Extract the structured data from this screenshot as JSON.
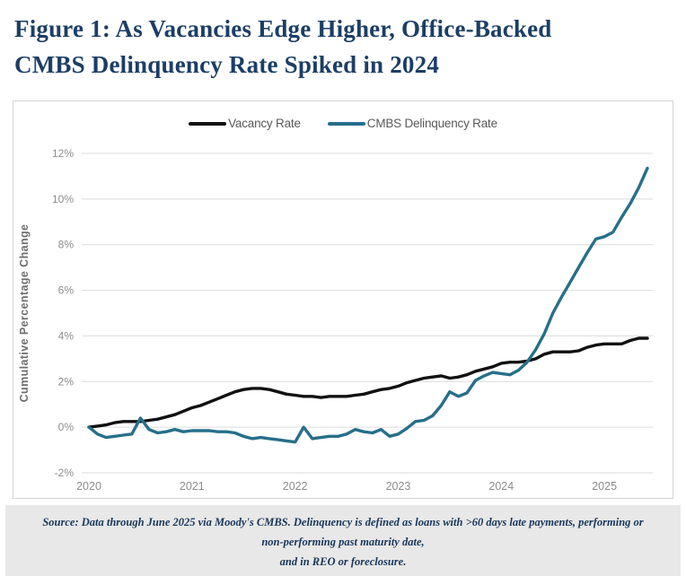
{
  "title": "Figure 1: As Vacancies Edge Higher, Office-Backed CMBS Delinquency Rate Spiked in 2024",
  "title_lines": [
    "Figure 1: As Vacancies Edge Higher, Office-Backed",
    "CMBS Delinquency Rate Spiked in 2024"
  ],
  "source_note": "Source: Data through June 2025 via Moody's CMBS. Delinquency is defined as loans with >60 days late payments, performing or non-performing past maturity date, and in REO or foreclosure.",
  "source_lines": [
    "Source: Data through June 2025 via Moody's CMBS. Delinquency is defined as loans with >60 days late payments, performing or non-performing past maturity date,",
    "and in REO or foreclosure."
  ],
  "colors": {
    "title_navy": "#1c3e66",
    "source_navy": "#17365c",
    "vacancy_line": "#111111",
    "cmbs_line": "#266f8a",
    "axis_text": "#8c8c8c",
    "axis_title": "#6e6e6e",
    "gridline": "#dcdcdc",
    "legend_text": "#595959",
    "panel_border": "#d4d4d4",
    "source_bg": "#e8e8e8"
  },
  "chart_data": {
    "type": "line",
    "title": "",
    "xlabel": "",
    "ylabel": "Cumulative Percentage Change",
    "ylim": [
      -2,
      12
    ],
    "grid": "horizontal",
    "legend_position": "top-center",
    "x_start": "Jan 2020",
    "x_end": "Jun 2025",
    "x_frequency": "monthly",
    "x_tick_labels": [
      "2020",
      "2021",
      "2022",
      "2023",
      "2024",
      "2025"
    ],
    "x_tick_month_index": [
      0,
      12,
      24,
      36,
      48,
      60
    ],
    "y_tick_values": [
      12,
      10,
      8,
      6,
      4,
      2,
      0,
      -2
    ],
    "y_tick_labels": [
      "12%",
      "10%",
      "8%",
      "6%",
      "4%",
      "2%",
      "0%",
      "-2%"
    ],
    "series": [
      {
        "name": "Vacancy Rate",
        "color": "#111111",
        "values": [
          0.0,
          0.05,
          0.1,
          0.2,
          0.25,
          0.25,
          0.25,
          0.3,
          0.35,
          0.45,
          0.55,
          0.7,
          0.85,
          0.95,
          1.1,
          1.25,
          1.4,
          1.55,
          1.65,
          1.7,
          1.7,
          1.65,
          1.55,
          1.45,
          1.4,
          1.35,
          1.35,
          1.3,
          1.35,
          1.35,
          1.35,
          1.4,
          1.45,
          1.55,
          1.65,
          1.7,
          1.8,
          1.95,
          2.05,
          2.15,
          2.2,
          2.25,
          2.15,
          2.2,
          2.3,
          2.45,
          2.55,
          2.65,
          2.8,
          2.85,
          2.85,
          2.9,
          3.0,
          3.2,
          3.3,
          3.3,
          3.3,
          3.35,
          3.5,
          3.6,
          3.65,
          3.65,
          3.65,
          3.8,
          3.9,
          3.9
        ]
      },
      {
        "name": "CMBS Delinquency Rate",
        "color": "#266f8a",
        "values": [
          0.0,
          -0.3,
          -0.45,
          -0.4,
          -0.35,
          -0.3,
          0.4,
          -0.1,
          -0.25,
          -0.2,
          -0.1,
          -0.2,
          -0.15,
          -0.15,
          -0.15,
          -0.2,
          -0.2,
          -0.25,
          -0.4,
          -0.5,
          -0.45,
          -0.5,
          -0.55,
          -0.6,
          -0.65,
          0.0,
          -0.5,
          -0.45,
          -0.4,
          -0.4,
          -0.3,
          -0.1,
          -0.2,
          -0.25,
          -0.1,
          -0.4,
          -0.3,
          -0.05,
          0.25,
          0.3,
          0.5,
          0.95,
          1.55,
          1.35,
          1.5,
          2.05,
          2.25,
          2.4,
          2.35,
          2.3,
          2.5,
          2.85,
          3.4,
          4.1,
          5.0,
          5.7,
          6.35,
          7.0,
          7.65,
          8.25,
          8.35,
          8.55,
          9.2,
          9.8,
          10.5,
          11.35
        ]
      }
    ]
  }
}
